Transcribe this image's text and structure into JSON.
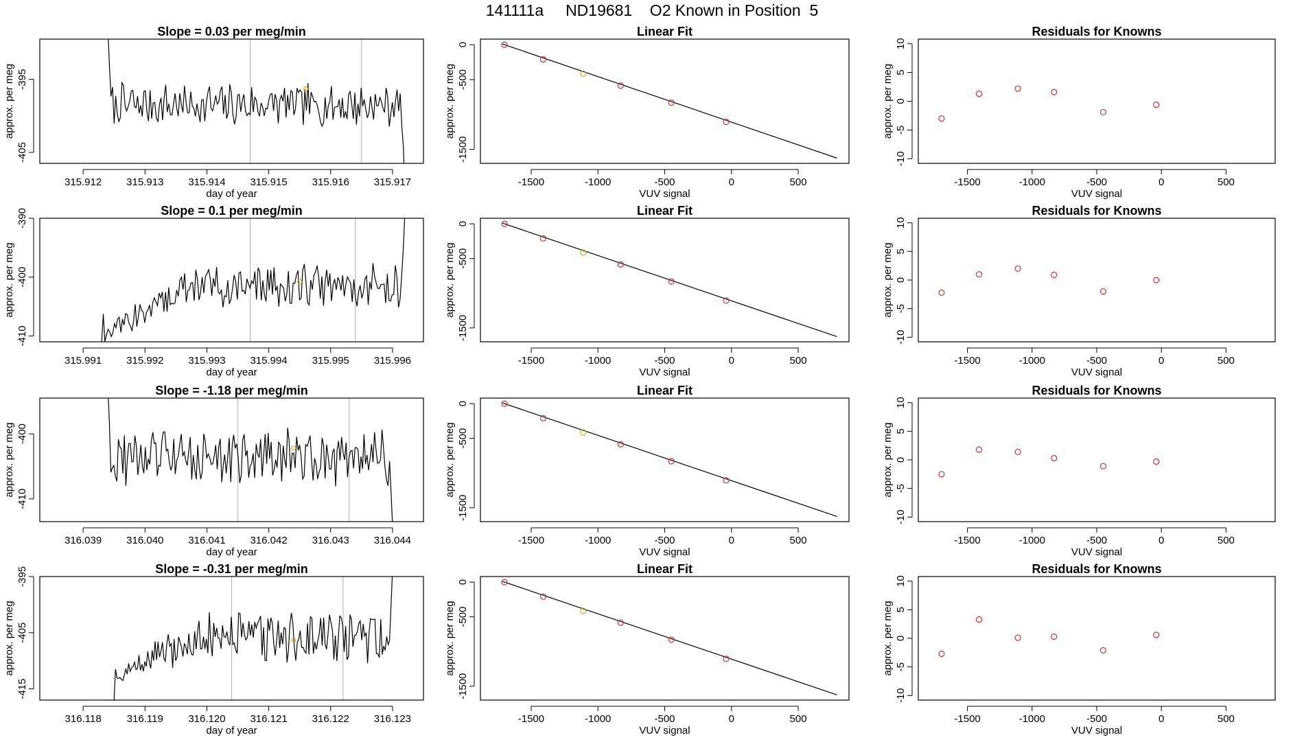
{
  "title": "141111a     ND19681    O2 Known in Position  5",
  "colors": {
    "line": "#000000",
    "residual": "#cc3333",
    "highlight": "#e8a317",
    "vline": "#bbbbbb"
  },
  "chart_data": [
    {
      "type": "line",
      "title": "Slope =  0.03  per meg/min",
      "xlabel": "day of year",
      "ylabel": "approx. per meg",
      "xlim": [
        315.9113,
        315.9175
      ],
      "ylim": [
        -406.5,
        -389.5
      ],
      "xticks": [
        315.912,
        315.913,
        315.914,
        315.915,
        315.916,
        315.917
      ],
      "xtick_labels": [
        "315.912",
        "315.913",
        "315.914",
        "315.915",
        "315.916",
        "315.917"
      ],
      "yticks": [
        -405,
        -395
      ],
      "ytick_labels": [
        "-405",
        "-395"
      ],
      "x_range": [
        315.9124,
        315.9172
      ],
      "y_mean": -398.5,
      "y_noise": 1.7,
      "start": {
        "x": 315.9125,
        "y": -388
      },
      "end": {
        "x": 315.9172,
        "y": -410
      },
      "vlines": [
        315.9147,
        315.9165
      ],
      "highlight_point": {
        "x": 315.9156,
        "y": -396.3
      }
    },
    {
      "type": "line",
      "title": "Slope =  0.1  per meg/min",
      "xlabel": "day of year",
      "ylabel": "approx. per meg",
      "xlim": [
        315.9903,
        315.9965
      ],
      "ylim": [
        -411.0,
        -390.0
      ],
      "xticks": [
        315.991,
        315.992,
        315.993,
        315.994,
        315.995,
        315.996
      ],
      "xtick_labels": [
        "315.991",
        "315.992",
        "315.993",
        "315.994",
        "315.995",
        "315.996"
      ],
      "yticks": [
        -410,
        -400,
        -390
      ],
      "ytick_labels": [
        "-410",
        "-400",
        "-390"
      ],
      "x_range": [
        315.9913,
        315.9962
      ],
      "y_mean": -401.5,
      "y_noise": 2.2,
      "start": {
        "x": 315.9913,
        "y": -411
      },
      "end": {
        "x": 315.9962,
        "y": -389
      },
      "ramp": {
        "until": 315.9927,
        "from": -410.5
      },
      "vlines": [
        315.9937,
        315.9954
      ],
      "highlight_point": {
        "x": 315.9945,
        "y": -400.8
      }
    },
    {
      "type": "line",
      "title": "Slope =  -1.18  per meg/min",
      "xlabel": "day of year",
      "ylabel": "approx. per meg",
      "xlim": [
        316.0383,
        316.0445
      ],
      "ylim": [
        -413.5,
        -394.5
      ],
      "xticks": [
        316.039,
        316.04,
        316.041,
        316.042,
        316.043,
        316.044
      ],
      "xtick_labels": [
        "316.039",
        "316.040",
        "316.041",
        "316.042",
        "316.043",
        "316.044"
      ],
      "yticks": [
        -410,
        -400
      ],
      "ytick_labels": [
        "-410",
        "-400"
      ],
      "x_range": [
        316.0394,
        316.044
      ],
      "y_mean": -403.5,
      "y_noise": 2.5,
      "start": {
        "x": 316.0394,
        "y": -393
      },
      "end": {
        "x": 316.044,
        "y": -414
      },
      "vlines": [
        316.0415,
        316.0433
      ],
      "highlight_point": {
        "x": 316.0424,
        "y": -402.2
      }
    },
    {
      "type": "line",
      "title": "Slope =  -0.31  per meg/min",
      "xlabel": "day of year",
      "ylabel": "approx. per meg",
      "xlim": [
        316.1173,
        316.1235
      ],
      "ylim": [
        -417.0,
        -395.0
      ],
      "xticks": [
        316.118,
        316.119,
        316.12,
        316.121,
        316.122,
        316.123
      ],
      "xtick_labels": [
        "316.118",
        "316.119",
        "316.120",
        "316.121",
        "316.122",
        "316.123"
      ],
      "yticks": [
        -415,
        -405,
        -395
      ],
      "ytick_labels": [
        "-415",
        "-405",
        "-395"
      ],
      "x_range": [
        316.1185,
        316.123
      ],
      "y_mean": -406.0,
      "y_noise": 2.6,
      "start": {
        "x": 316.1185,
        "y": -417
      },
      "end": {
        "x": 316.123,
        "y": -394
      },
      "ramp": {
        "until": 316.1199,
        "from": -413
      },
      "vlines": [
        316.1204,
        316.1222
      ],
      "highlight_point": {
        "x": 316.1214,
        "y": -406.3
      }
    },
    {
      "type": "scatter",
      "title": "Linear Fit",
      "xlabel": "VUV signal",
      "ylabel": "approx. per meg",
      "xlim": [
        -1880,
        880
      ],
      "ylim": [
        -1700,
        80
      ],
      "xticks": [
        -1500,
        -1000,
        -500,
        0,
        500
      ],
      "xtick_labels": [
        "-1500",
        "-1000",
        "-500",
        "0",
        "500"
      ],
      "yticks": [
        -1500,
        -500,
        0
      ],
      "ytick_labels": [
        "-1500",
        "-500",
        "0"
      ],
      "x": [
        -1700,
        -1410,
        -1110,
        -830,
        -450,
        -40
      ],
      "y": [
        0,
        -210,
        -415,
        -585,
        -830,
        -1105
      ],
      "highlight_index": 2,
      "fit_line": [
        [
          -1715,
          10
        ],
        [
          790,
          -1625
        ]
      ]
    },
    {
      "type": "scatter",
      "title": "Linear Fit",
      "xlabel": "VUV signal",
      "ylabel": "approx. per meg",
      "xlim": [
        -1880,
        880
      ],
      "ylim": [
        -1700,
        80
      ],
      "xticks": [
        -1500,
        -1000,
        -500,
        0,
        500
      ],
      "xtick_labels": [
        "-1500",
        "-1000",
        "-500",
        "0",
        "500"
      ],
      "yticks": [
        -1500,
        -500,
        0
      ],
      "ytick_labels": [
        "-1500",
        "-500",
        "0"
      ],
      "x": [
        -1700,
        -1410,
        -1110,
        -830,
        -450,
        -40
      ],
      "y": [
        0,
        -210,
        -415,
        -585,
        -830,
        -1105
      ],
      "highlight_index": 2,
      "fit_line": [
        [
          -1715,
          10
        ],
        [
          790,
          -1625
        ]
      ]
    },
    {
      "type": "scatter",
      "title": "Linear Fit",
      "xlabel": "VUV signal",
      "ylabel": "approx. per meg",
      "xlim": [
        -1880,
        880
      ],
      "ylim": [
        -1700,
        80
      ],
      "xticks": [
        -1500,
        -1000,
        -500,
        0,
        500
      ],
      "xtick_labels": [
        "-1500",
        "-1000",
        "-500",
        "0",
        "500"
      ],
      "yticks": [
        -1500,
        -500,
        0
      ],
      "ytick_labels": [
        "-1500",
        "-500",
        "0"
      ],
      "x": [
        -1700,
        -1410,
        -1110,
        -830,
        -450,
        -40
      ],
      "y": [
        0,
        -210,
        -415,
        -585,
        -830,
        -1105
      ],
      "highlight_index": 2,
      "fit_line": [
        [
          -1715,
          10
        ],
        [
          790,
          -1625
        ]
      ]
    },
    {
      "type": "scatter",
      "title": "Linear Fit",
      "xlabel": "VUV signal",
      "ylabel": "approx. per meg",
      "xlim": [
        -1880,
        880
      ],
      "ylim": [
        -1700,
        80
      ],
      "xticks": [
        -1500,
        -1000,
        -500,
        0,
        500
      ],
      "xtick_labels": [
        "-1500",
        "-1000",
        "-500",
        "0",
        "500"
      ],
      "yticks": [
        -1500,
        -500,
        0
      ],
      "ytick_labels": [
        "-1500",
        "-500",
        "0"
      ],
      "x": [
        -1700,
        -1410,
        -1110,
        -830,
        -450,
        -40
      ],
      "y": [
        0,
        -210,
        -415,
        -585,
        -830,
        -1105
      ],
      "highlight_index": 2,
      "fit_line": [
        [
          -1715,
          10
        ],
        [
          790,
          -1625
        ]
      ]
    },
    {
      "type": "scatter",
      "title": "Residuals for Knowns",
      "xlabel": "VUV signal",
      "ylabel": "approx. per meg",
      "xlim": [
        -1880,
        880
      ],
      "ylim": [
        -10.8,
        10.8
      ],
      "xticks": [
        -1500,
        -1000,
        -500,
        0,
        500
      ],
      "xtick_labels": [
        "-1500",
        "-1000",
        "-500",
        "0",
        "500"
      ],
      "yticks": [
        -10,
        -5,
        0,
        5,
        10
      ],
      "ytick_labels": [
        "-10",
        "-5",
        "0",
        "5",
        "10"
      ],
      "x": [
        -1700,
        -1410,
        -1110,
        -830,
        -450,
        -40
      ],
      "y": [
        -3.0,
        1.3,
        2.2,
        1.6,
        -1.9,
        -0.6
      ]
    },
    {
      "type": "scatter",
      "title": "Residuals for Knowns",
      "xlabel": "VUV signal",
      "ylabel": "approx. per meg",
      "xlim": [
        -1880,
        880
      ],
      "ylim": [
        -10.8,
        10.8
      ],
      "xticks": [
        -1500,
        -1000,
        -500,
        0,
        500
      ],
      "xtick_labels": [
        "-1500",
        "-1000",
        "-500",
        "0",
        "500"
      ],
      "yticks": [
        -10,
        -5,
        0,
        5,
        10
      ],
      "ytick_labels": [
        "-10",
        "-5",
        "0",
        "5",
        "10"
      ],
      "x": [
        -1700,
        -1410,
        -1110,
        -830,
        -450,
        -40
      ],
      "y": [
        -2.2,
        1.0,
        2.0,
        0.9,
        -2.0,
        0.0
      ]
    },
    {
      "type": "scatter",
      "title": "Residuals for Knowns",
      "xlabel": "VUV signal",
      "ylabel": "approx. per meg",
      "xlim": [
        -1880,
        880
      ],
      "ylim": [
        -10.8,
        10.8
      ],
      "xticks": [
        -1500,
        -1000,
        -500,
        0,
        500
      ],
      "xtick_labels": [
        "-1500",
        "-1000",
        "-500",
        "0",
        "500"
      ],
      "yticks": [
        -10,
        -5,
        0,
        5,
        10
      ],
      "ytick_labels": [
        "-10",
        "-5",
        "0",
        "5",
        "10"
      ],
      "x": [
        -1700,
        -1410,
        -1110,
        -830,
        -450,
        -40
      ],
      "y": [
        -2.5,
        1.8,
        1.4,
        0.3,
        -1.1,
        -0.3
      ]
    },
    {
      "type": "scatter",
      "title": "Residuals for Knowns",
      "xlabel": "VUV signal",
      "ylabel": "approx. per meg",
      "xlim": [
        -1880,
        880
      ],
      "ylim": [
        -10.8,
        10.8
      ],
      "xticks": [
        -1500,
        -1000,
        -500,
        0,
        500
      ],
      "xtick_labels": [
        "-1500",
        "-1000",
        "-500",
        "0",
        "500"
      ],
      "yticks": [
        -10,
        -5,
        0,
        5,
        10
      ],
      "ytick_labels": [
        "-10",
        "-5",
        "0",
        "5",
        "10"
      ],
      "x": [
        -1700,
        -1410,
        -1110,
        -830,
        -450,
        -40
      ],
      "y": [
        -2.7,
        3.3,
        0.1,
        0.3,
        -2.1,
        0.6
      ]
    }
  ]
}
